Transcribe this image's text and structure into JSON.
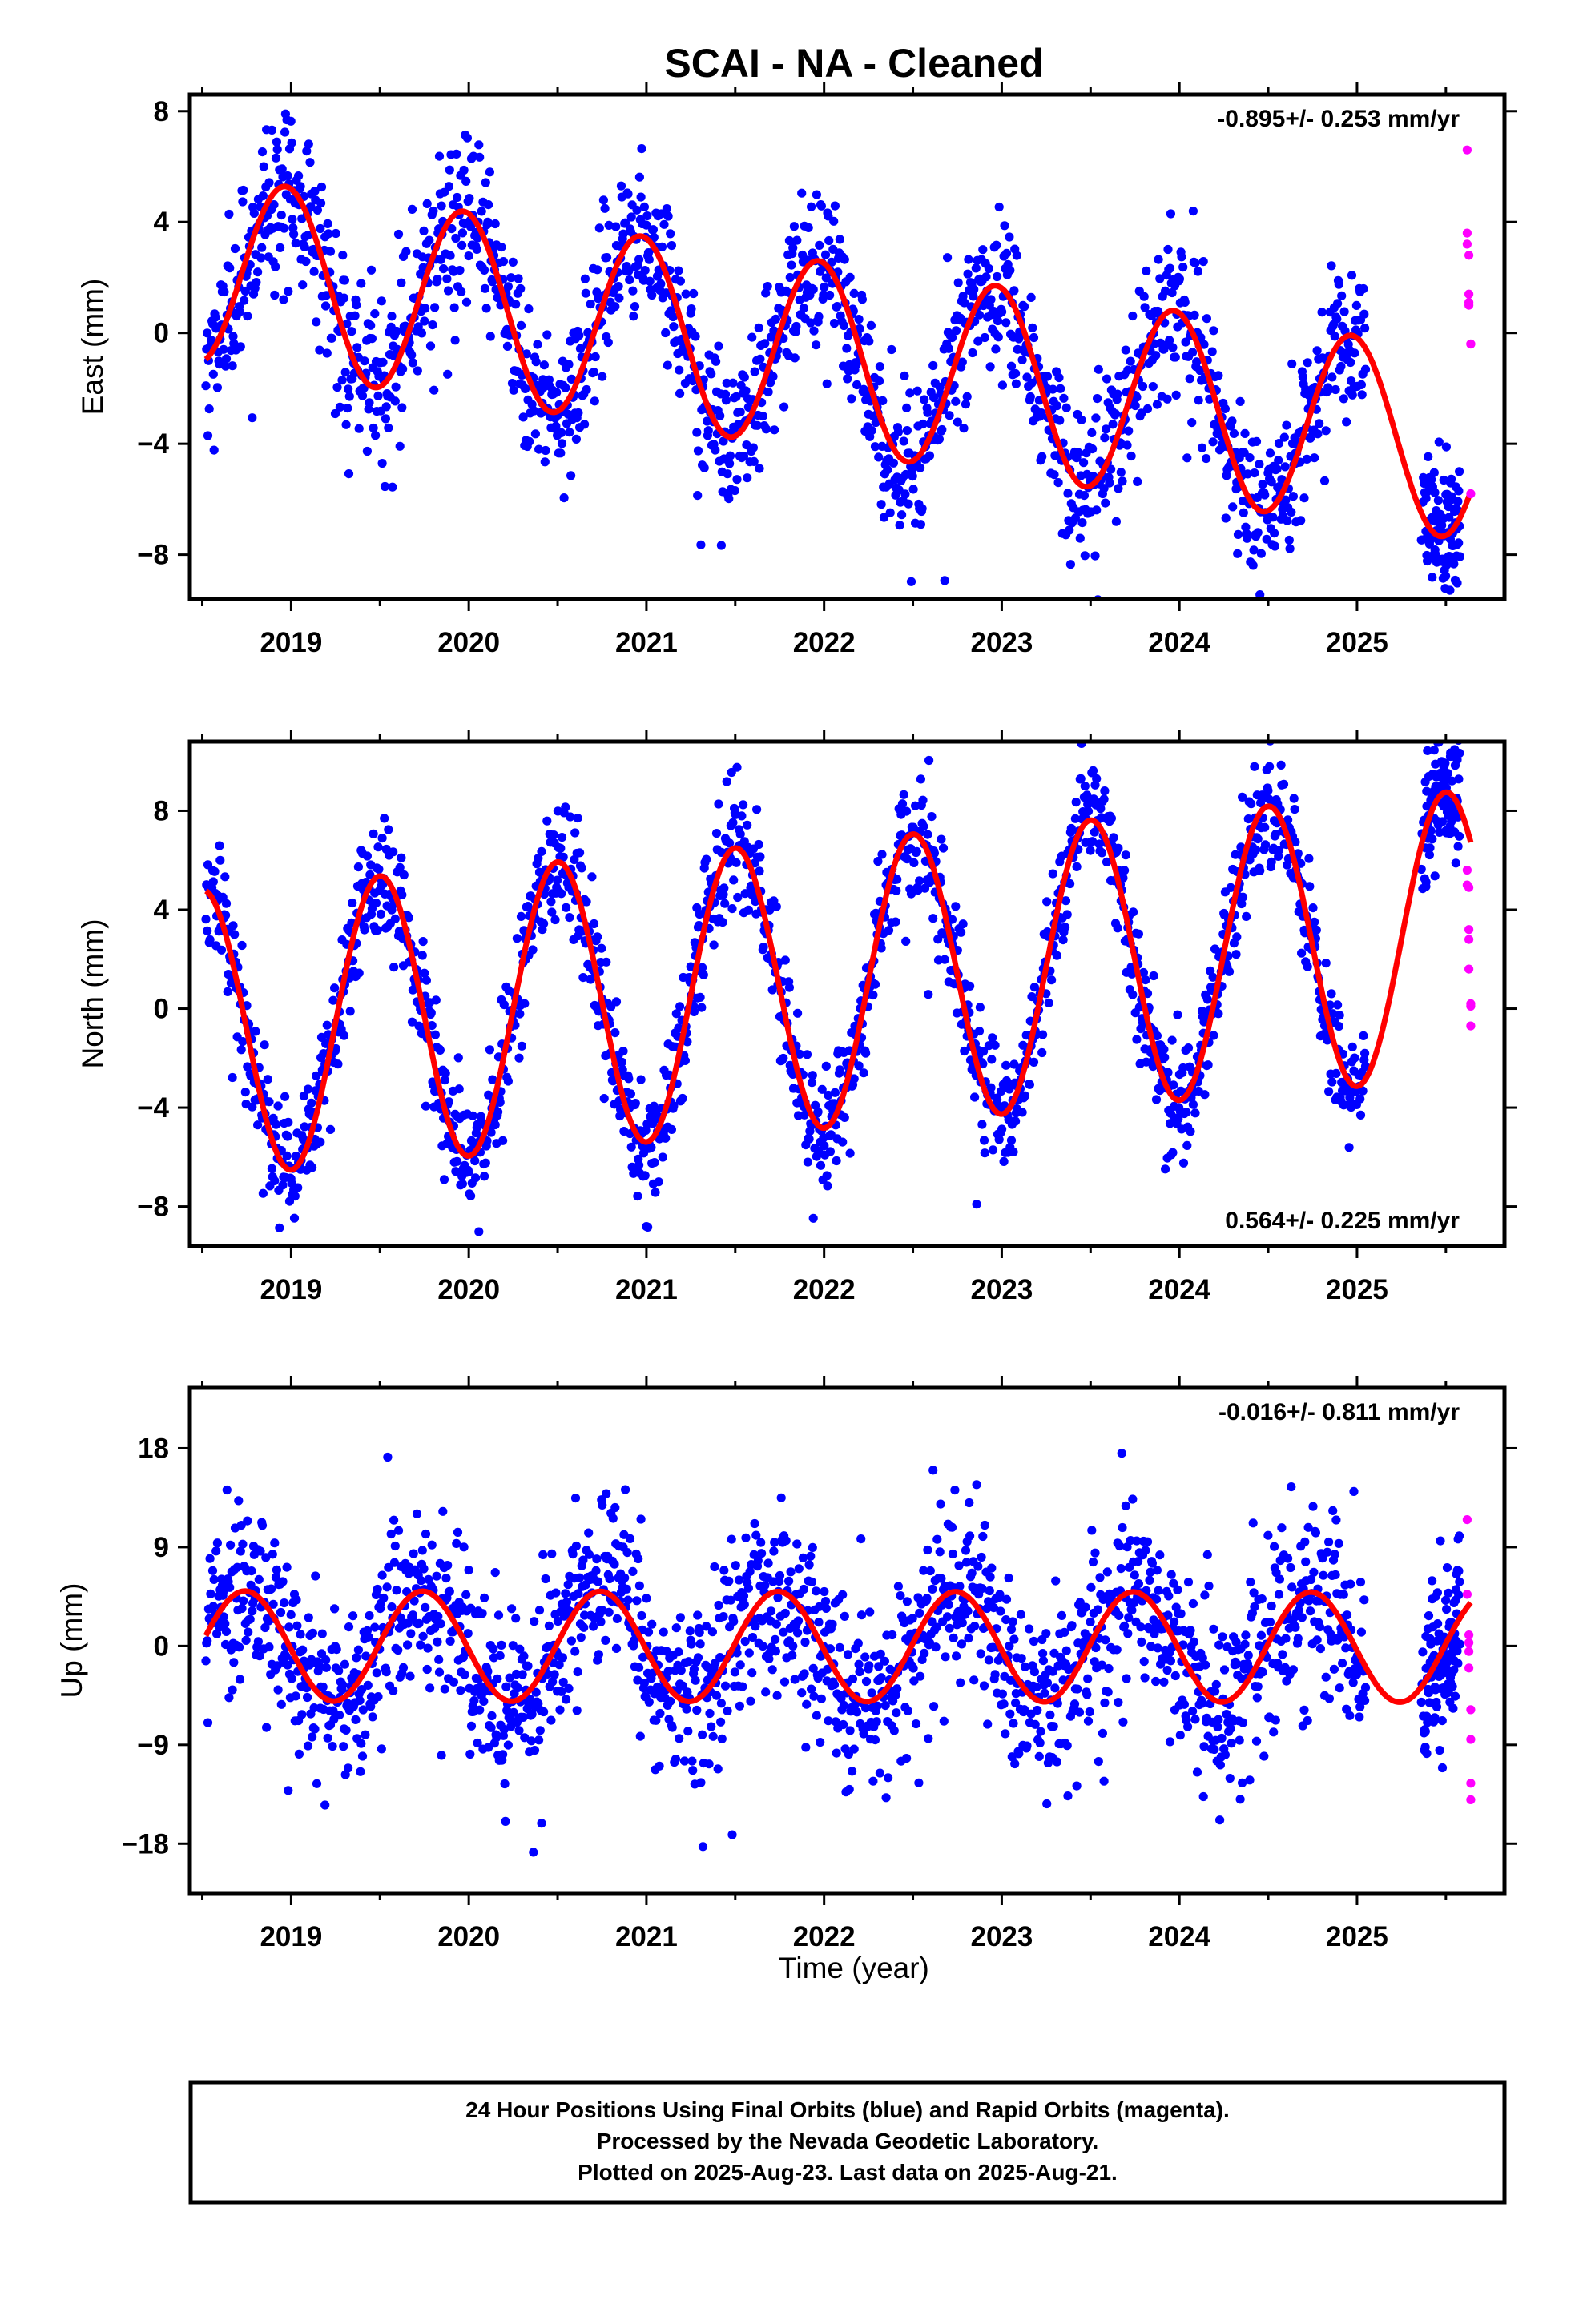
{
  "title": "SCAI  - NA - Cleaned",
  "xlabel": "Time (year)",
  "caption": {
    "lines": [
      "24 Hour Positions Using Final Orbits (blue) and Rapid Orbits (magenta).",
      "Processed by the Nevada Geodetic Laboratory.",
      "Plotted on 2025-Aug-23. Last data on 2025-Aug-21."
    ]
  },
  "colors": {
    "final": "#0000ff",
    "rapid": "#ff00ff",
    "model": "#ff0000",
    "frame": "#000000"
  },
  "chart_data": [
    {
      "type": "scatter",
      "name": "east",
      "ylabel": "East (mm)",
      "rate_text": "-0.895+/- 0.253 mm/yr",
      "rate_position": "top-right",
      "xlim": [
        2018.43,
        2025.83
      ],
      "ylim": [
        -9.6,
        8.6
      ],
      "yticks": [
        -8,
        -4,
        0,
        4,
        8
      ],
      "xticks": [
        2019,
        2020,
        2021,
        2022,
        2023,
        2024,
        2025
      ],
      "xtick_labels": [
        "2019",
        "2020",
        "2021",
        "2022",
        "2023",
        "2024",
        "2025"
      ],
      "model": {
        "t0": 2018.5,
        "trend": -0.895,
        "offset": 2.3,
        "annual_amp": 3.4,
        "annual_peak": 2018.97,
        "t_start": 2018.52,
        "t_end": 2025.64
      },
      "final_series": {
        "t_start": 2018.52,
        "t_end": 2025.58,
        "step_days": 1.4,
        "gaps": [
          [
            2025.05,
            2025.36
          ]
        ],
        "scatter": 1.45
      },
      "rapid_series": {
        "t": [
          2025.62,
          2025.62,
          2025.62,
          2025.63,
          2025.63,
          2025.63,
          2025.63,
          2025.64,
          2025.64,
          2025.64
        ],
        "y": [
          6.6,
          3.6,
          3.2,
          2.8,
          1.4,
          1.1,
          1.0,
          -0.4,
          -0.4,
          -5.8
        ]
      }
    },
    {
      "type": "scatter",
      "name": "north",
      "ylabel": "North (mm)",
      "rate_text": "0.564+/- 0.225 mm/yr",
      "rate_position": "bottom-right",
      "xlim": [
        2018.43,
        2025.83
      ],
      "ylim": [
        -9.6,
        10.8
      ],
      "yticks": [
        -8,
        -4,
        0,
        4,
        8
      ],
      "xticks": [
        2019,
        2020,
        2021,
        2022,
        2023,
        2024,
        2025
      ],
      "xtick_labels": [
        "2019",
        "2020",
        "2021",
        "2022",
        "2023",
        "2024",
        "2025"
      ],
      "model": {
        "t0": 2018.5,
        "trend": 0.564,
        "offset": -1.0,
        "annual_amp": 5.8,
        "annual_peak": 2018.5,
        "t_start": 2018.52,
        "t_end": 2025.64
      },
      "final_series": {
        "t_start": 2018.52,
        "t_end": 2025.58,
        "step_days": 1.4,
        "gaps": [
          [
            2025.05,
            2025.36
          ]
        ],
        "scatter": 1.2
      },
      "rapid_series": {
        "t": [
          2025.62,
          2025.62,
          2025.63,
          2025.63,
          2025.63,
          2025.63,
          2025.64,
          2025.64,
          2025.64
        ],
        "y": [
          5.6,
          5.0,
          4.9,
          3.2,
          2.8,
          1.6,
          0.2,
          0.1,
          -0.7
        ]
      }
    },
    {
      "type": "scatter",
      "name": "up",
      "ylabel": "Up (mm)",
      "rate_text": "-0.016+/- 0.811 mm/yr",
      "rate_position": "top-right",
      "xlim": [
        2018.43,
        2025.83
      ],
      "ylim": [
        -22.5,
        23.5
      ],
      "yticks": [
        -18,
        -9,
        0,
        9,
        18
      ],
      "xticks": [
        2019,
        2020,
        2021,
        2022,
        2023,
        2024,
        2025
      ],
      "xtick_labels": [
        "2019",
        "2020",
        "2021",
        "2022",
        "2023",
        "2024",
        "2025"
      ],
      "model": {
        "t0": 2018.5,
        "trend": -0.016,
        "offset": 0.0,
        "annual_amp": 5.0,
        "annual_peak": 2018.74,
        "t_start": 2018.52,
        "t_end": 2025.64
      },
      "final_series": {
        "t_start": 2018.52,
        "t_end": 2025.58,
        "step_days": 1.4,
        "gaps": [
          [
            2025.05,
            2025.36
          ]
        ],
        "scatter": 4.2
      },
      "rapid_series": {
        "t": [
          2025.62,
          2025.62,
          2025.63,
          2025.63,
          2025.63,
          2025.63,
          2025.64,
          2025.64,
          2025.64,
          2025.64
        ],
        "y": [
          11.5,
          4.7,
          1.0,
          0.3,
          -0.5,
          -2.0,
          -5.8,
          -8.5,
          -12.5,
          -14.0
        ]
      }
    }
  ]
}
